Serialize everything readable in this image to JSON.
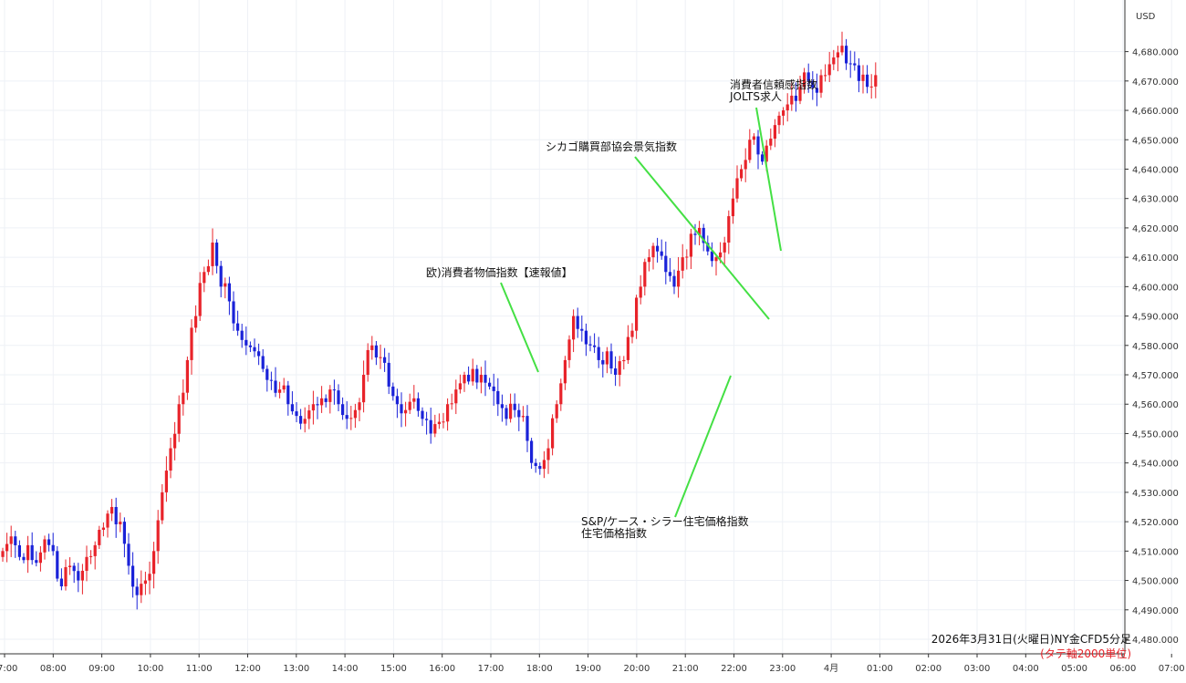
{
  "chart_data": {
    "type": "candlestick",
    "currency_label": "USD",
    "ylim": [
      4475,
      4690
    ],
    "yticks": [
      4480,
      4490,
      4500,
      4510,
      4520,
      4530,
      4540,
      4550,
      4560,
      4570,
      4580,
      4590,
      4600,
      4610,
      4620,
      4630,
      4640,
      4650,
      4660,
      4670,
      4680
    ],
    "ytick_labels": [
      "4,480.000",
      "4,490.000",
      "4,500.000",
      "4,510.000",
      "4,520.000",
      "4,530.000",
      "4,540.000",
      "4,550.000",
      "4,560.000",
      "4,570.000",
      "4,580.000",
      "4,590.000",
      "4,600.000",
      "4,610.000",
      "4,620.000",
      "4,630.000",
      "4,640.000",
      "4,650.000",
      "4,660.000",
      "4,670.000",
      "4,680.000"
    ],
    "xticks": [
      "07:00",
      "08:00",
      "09:00",
      "10:00",
      "11:00",
      "12:00",
      "13:00",
      "14:00",
      "15:00",
      "16:00",
      "17:00",
      "18:00",
      "19:00",
      "20:00",
      "21:00",
      "22:00",
      "23:00",
      "4月",
      "01:00",
      "02:00",
      "03:00",
      "04:00",
      "05:00",
      "06:00",
      "07:00"
    ],
    "bar_interval": "5分",
    "candles": [
      4510,
      4515,
      4508,
      4512,
      4506,
      4514,
      4510,
      4498,
      4505,
      4500,
      4508,
      4512,
      4518,
      4525,
      4520,
      4505,
      4495,
      4500,
      4510,
      4530,
      4545,
      4560,
      4575,
      4590,
      4605,
      4615,
      4600,
      4595,
      4585,
      4580,
      4578,
      4572,
      4568,
      4565,
      4560,
      4556,
      4555,
      4560,
      4562,
      4565,
      4560,
      4555,
      4558,
      4570,
      4580,
      4576,
      4566,
      4560,
      4558,
      4562,
      4555,
      4550,
      4554,
      4560,
      4565,
      4570,
      4572,
      4570,
      4566,
      4560,
      4555,
      4558,
      4556,
      4540,
      4538,
      4545,
      4560,
      4575,
      4590,
      4585,
      4580,
      4575,
      4578,
      4570,
      4575,
      4585,
      4600,
      4610,
      4612,
      4605,
      4600,
      4610,
      4618,
      4620,
      4612,
      4610,
      4615,
      4630,
      4640,
      4650,
      4645,
      4648,
      4655,
      4660,
      4665,
      4668,
      4670,
      4666,
      4672,
      4678,
      4682,
      4676,
      4670,
      4668,
      4672
    ]
  },
  "annotations": [
    {
      "id": "eu-cpi",
      "lines": [
        "欧)消費者物価指数【速報値】"
      ]
    },
    {
      "id": "chicago-pmi",
      "lines": [
        "シカゴ購買部協会景気指数"
      ]
    },
    {
      "id": "cb-confidence",
      "lines": [
        "消費者信頼感指数",
        "JOLTS求人"
      ]
    },
    {
      "id": "case-shiller",
      "lines": [
        "S&P/ケース・シラー住宅価格指数",
        "住宅価格指数"
      ]
    }
  ],
  "caption": {
    "line1": "2026年3月31日(火曜日)NY金CFD5分足",
    "line2": "(タテ軸2000単位)"
  },
  "colors": {
    "up": "#e8232a",
    "down": "#1a22d8",
    "grid": "#eef1f6",
    "annotation_line": "#44e044",
    "caption_red": "#e8232a",
    "axis": "#333333"
  }
}
